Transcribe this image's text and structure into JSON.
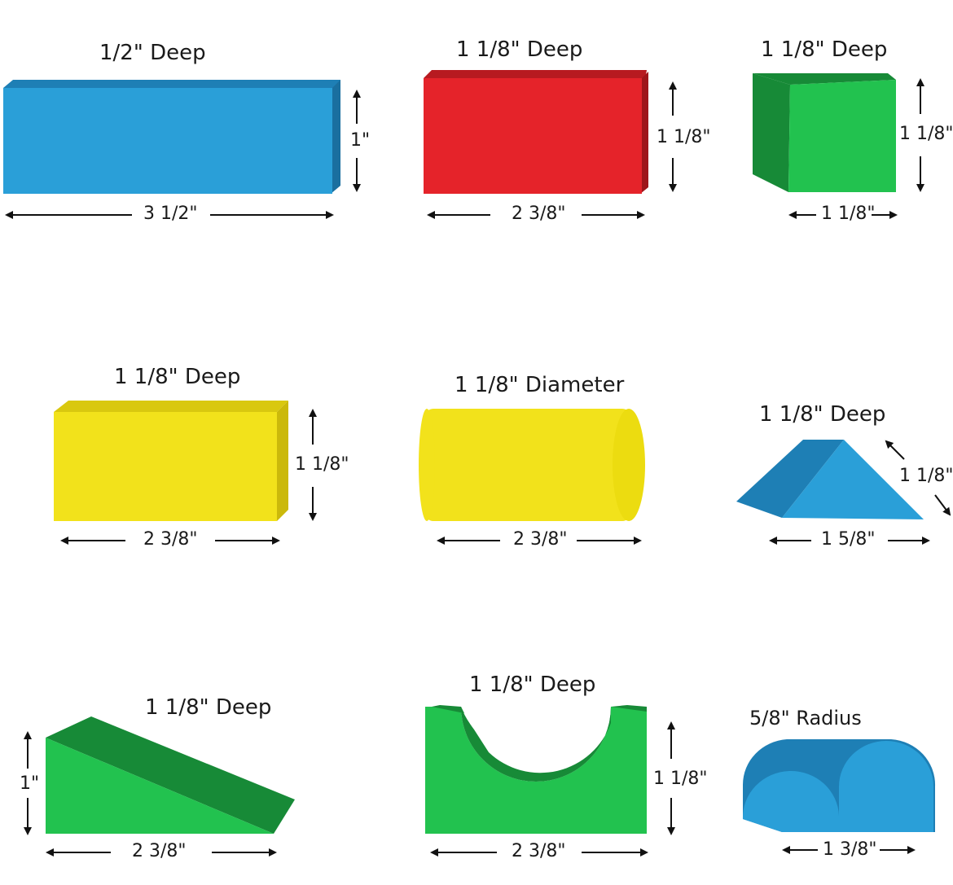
{
  "colors": {
    "blue": "#2a9fd8",
    "blue_dark": "#1e7fb5",
    "red": "#e5232a",
    "red_dark": "#b71a20",
    "green": "#1fb34a",
    "green_dark": "#178a37",
    "yellow": "#f2e21b",
    "yellow_dark": "#d9c80f",
    "arrow": "#111111"
  },
  "blocks": [
    {
      "id": "blue-long-plank",
      "depth_label": "1/2\" Deep",
      "width_label": "3 1/2\"",
      "height_label": "1\""
    },
    {
      "id": "red-rectangle",
      "depth_label": "1 1/8\" Deep",
      "width_label": "2 3/8\"",
      "height_label": "1 1/8\""
    },
    {
      "id": "green-cube",
      "depth_label": "1 1/8\" Deep",
      "width_label": "1 1/8\"",
      "height_label": "1 1/8\""
    },
    {
      "id": "yellow-rectangle",
      "depth_label": "1 1/8\" Deep",
      "width_label": "2 3/8\"",
      "height_label": "1 1/8\""
    },
    {
      "id": "yellow-cylinder",
      "depth_label": "1 1/8\" Diameter",
      "width_label": "2 3/8\""
    },
    {
      "id": "blue-triangle",
      "depth_label": "1 1/8\" Deep",
      "width_label": "1 5/8\"",
      "side_label": "1 1/8\""
    },
    {
      "id": "green-ramp",
      "depth_label": "1 1/8\" Deep",
      "width_label": "2 3/8\"",
      "height_label": "1\""
    },
    {
      "id": "green-arch",
      "depth_label": "1 1/8\" Deep",
      "width_label": "2 3/8\"",
      "height_label": "1 1/8\""
    },
    {
      "id": "blue-half-cylinder",
      "depth_label": "5/8\" Radius",
      "width_label": "1 3/8\""
    }
  ]
}
